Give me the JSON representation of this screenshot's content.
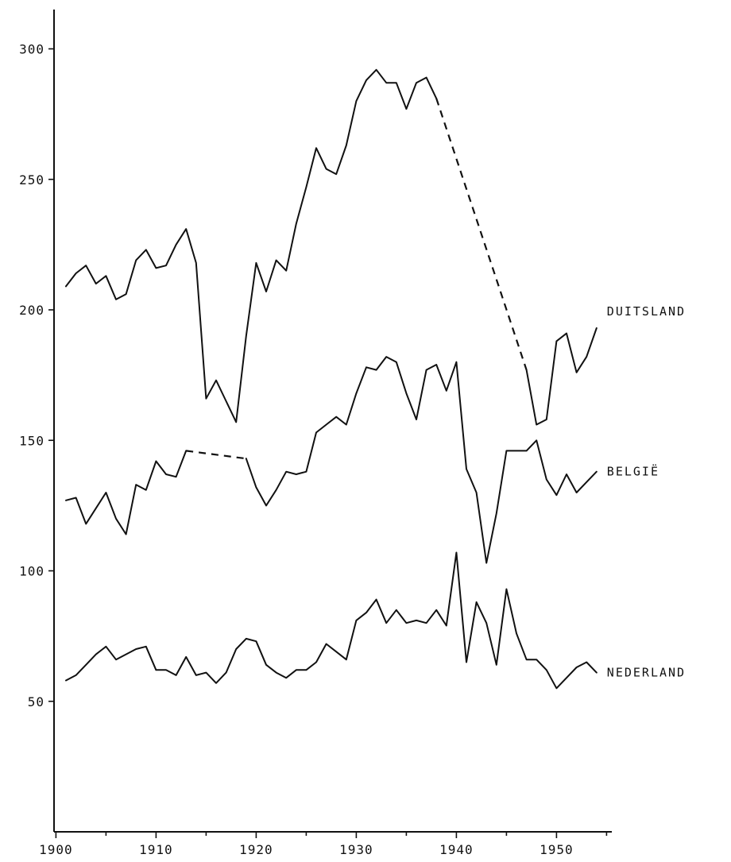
{
  "chart_data": {
    "type": "line",
    "xlim": [
      1900,
      1955
    ],
    "ylim": [
      0,
      315
    ],
    "x_ticks": [
      1900,
      1910,
      1920,
      1930,
      1940,
      1950
    ],
    "y_ticks": [
      50,
      100,
      150,
      200,
      250,
      300
    ],
    "x_tick_labels": [
      "1900",
      "1910",
      "1920",
      "1930",
      "1940",
      "1950"
    ],
    "y_tick_labels": [
      "50",
      "100",
      "150",
      "200",
      "250",
      "300"
    ],
    "grid": false,
    "series": [
      {
        "name": "DUITSLAND",
        "points": [
          [
            1901,
            209
          ],
          [
            1902,
            214
          ],
          [
            1903,
            217
          ],
          [
            1904,
            210
          ],
          [
            1905,
            213
          ],
          [
            1906,
            204
          ],
          [
            1907,
            206
          ],
          [
            1908,
            219
          ],
          [
            1909,
            223
          ],
          [
            1910,
            216
          ],
          [
            1911,
            217
          ],
          [
            1912,
            225
          ],
          [
            1913,
            231
          ],
          [
            1914,
            218
          ],
          [
            1915,
            166
          ],
          [
            1916,
            173
          ],
          [
            1917,
            165
          ],
          [
            1918,
            157
          ],
          [
            1919,
            190
          ],
          [
            1920,
            218
          ],
          [
            1921,
            207
          ],
          [
            1922,
            219
          ],
          [
            1923,
            215
          ],
          [
            1924,
            233
          ],
          [
            1925,
            247
          ],
          [
            1926,
            262
          ],
          [
            1927,
            254
          ],
          [
            1928,
            252
          ],
          [
            1929,
            263
          ],
          [
            1930,
            280
          ],
          [
            1931,
            288
          ],
          [
            1932,
            292
          ],
          [
            1933,
            287
          ],
          [
            1934,
            287
          ],
          [
            1935,
            277
          ],
          [
            1936,
            287
          ],
          [
            1937,
            289
          ],
          [
            1938,
            281
          ],
          null,
          [
            1947,
            177
          ],
          [
            1948,
            156
          ],
          [
            1949,
            158
          ],
          [
            1950,
            188
          ],
          [
            1951,
            191
          ],
          [
            1952,
            176
          ],
          [
            1953,
            182
          ],
          [
            1954,
            193
          ]
        ],
        "dashed_gaps": [
          [
            [
              1938,
              281
            ],
            [
              1947,
              177
            ]
          ]
        ]
      },
      {
        "name": "BELGIË",
        "points": [
          [
            1901,
            127
          ],
          [
            1902,
            128
          ],
          [
            1903,
            118
          ],
          [
            1904,
            124
          ],
          [
            1905,
            130
          ],
          [
            1906,
            120
          ],
          [
            1907,
            114
          ],
          [
            1908,
            133
          ],
          [
            1909,
            131
          ],
          [
            1910,
            142
          ],
          [
            1911,
            137
          ],
          [
            1912,
            136
          ],
          [
            1913,
            146
          ],
          null,
          [
            1919,
            143
          ],
          [
            1920,
            132
          ],
          [
            1921,
            125
          ],
          [
            1922,
            131
          ],
          [
            1923,
            138
          ],
          [
            1924,
            137
          ],
          [
            1925,
            138
          ],
          [
            1926,
            153
          ],
          [
            1927,
            156
          ],
          [
            1928,
            159
          ],
          [
            1929,
            156
          ],
          [
            1930,
            168
          ],
          [
            1931,
            178
          ],
          [
            1932,
            177
          ],
          [
            1933,
            182
          ],
          [
            1934,
            180
          ],
          [
            1935,
            168
          ],
          [
            1936,
            158
          ],
          [
            1937,
            177
          ],
          [
            1938,
            179
          ],
          [
            1939,
            169
          ],
          [
            1940,
            180
          ],
          [
            1941,
            139
          ],
          [
            1942,
            130
          ],
          [
            1943,
            103
          ],
          [
            1944,
            122
          ],
          [
            1945,
            146
          ],
          [
            1946,
            146
          ],
          [
            1947,
            146
          ],
          [
            1948,
            150
          ],
          [
            1949,
            135
          ],
          [
            1950,
            129
          ],
          [
            1951,
            137
          ],
          [
            1952,
            130
          ],
          [
            1953,
            134
          ],
          [
            1954,
            138
          ]
        ],
        "dashed_gaps": [
          [
            [
              1913,
              146
            ],
            [
              1919,
              143
            ]
          ]
        ]
      },
      {
        "name": "NEDERLAND",
        "points": [
          [
            1901,
            58
          ],
          [
            1902,
            60
          ],
          [
            1903,
            64
          ],
          [
            1904,
            68
          ],
          [
            1905,
            71
          ],
          [
            1906,
            66
          ],
          [
            1907,
            68
          ],
          [
            1908,
            70
          ],
          [
            1909,
            71
          ],
          [
            1910,
            62
          ],
          [
            1911,
            62
          ],
          [
            1912,
            60
          ],
          [
            1913,
            67
          ],
          [
            1914,
            60
          ],
          [
            1915,
            61
          ],
          [
            1916,
            57
          ],
          [
            1917,
            61
          ],
          [
            1918,
            70
          ],
          [
            1919,
            74
          ],
          [
            1920,
            73
          ],
          [
            1921,
            64
          ],
          [
            1922,
            61
          ],
          [
            1923,
            59
          ],
          [
            1924,
            62
          ],
          [
            1925,
            62
          ],
          [
            1926,
            65
          ],
          [
            1927,
            72
          ],
          [
            1928,
            69
          ],
          [
            1929,
            66
          ],
          [
            1930,
            81
          ],
          [
            1931,
            84
          ],
          [
            1932,
            89
          ],
          [
            1933,
            80
          ],
          [
            1934,
            85
          ],
          [
            1935,
            80
          ],
          [
            1936,
            81
          ],
          [
            1937,
            80
          ],
          [
            1938,
            85
          ],
          [
            1939,
            79
          ],
          [
            1940,
            107
          ],
          [
            1941,
            65
          ],
          [
            1942,
            88
          ],
          [
            1943,
            80
          ],
          [
            1944,
            64
          ],
          [
            1945,
            93
          ],
          [
            1946,
            76
          ],
          [
            1947,
            66
          ],
          [
            1948,
            66
          ],
          [
            1949,
            62
          ],
          [
            1950,
            55
          ],
          [
            1951,
            59
          ],
          [
            1952,
            63
          ],
          [
            1953,
            65
          ],
          [
            1954,
            61
          ]
        ],
        "dashed_gaps": []
      }
    ]
  }
}
